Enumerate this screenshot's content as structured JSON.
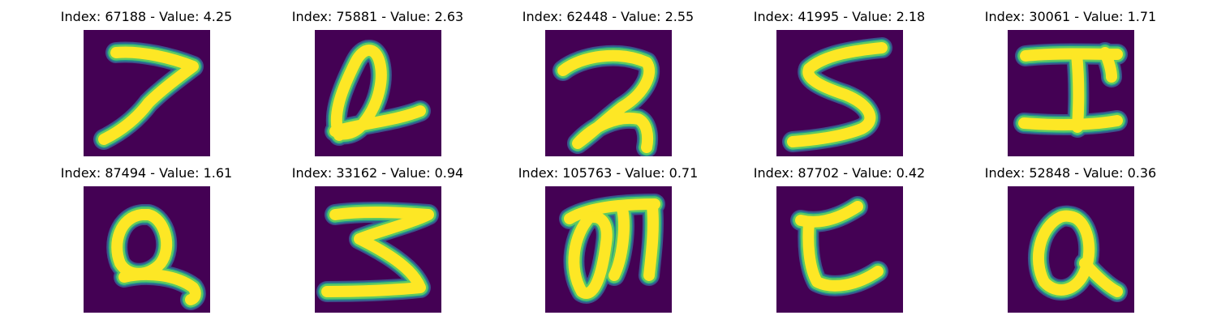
{
  "colors": {
    "background": "#440154",
    "stroke_core": "#fde725",
    "stroke_mid": "#5ec962",
    "stroke_edge": "#21918c",
    "stroke_outer": "#3b528b"
  },
  "panels": [
    {
      "title": "Index: 67188 - Value: 4.25",
      "glyph": "digit-7-like"
    },
    {
      "title": "Index: 75881 - Value: 2.63",
      "glyph": "loop-with-tail"
    },
    {
      "title": "Index: 62448 - Value: 2.55",
      "glyph": "digit-2-like"
    },
    {
      "title": "Index: 41995 - Value: 2.18",
      "glyph": "letter-s-like"
    },
    {
      "title": "Index: 30061 - Value: 1.71",
      "glyph": "letter-i-like"
    },
    {
      "title": "Index: 87494 - Value: 1.61",
      "glyph": "letter-q-like"
    },
    {
      "title": "Index: 33162 - Value: 0.94",
      "glyph": "letter-z-like"
    },
    {
      "title": "Index: 105763 - Value: 0.71",
      "glyph": "letter-g-like"
    },
    {
      "title": "Index: 87702 - Value: 0.42",
      "glyph": "letter-c-like"
    },
    {
      "title": "Index: 52848 - Value: 0.36",
      "glyph": "letter-a-like"
    }
  ]
}
